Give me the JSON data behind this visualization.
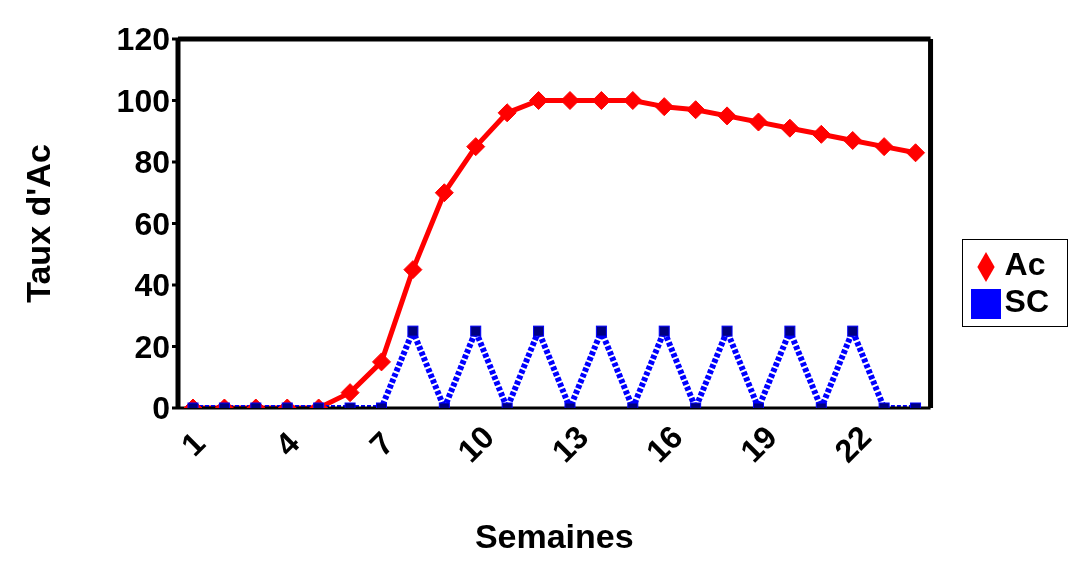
{
  "chart_data": {
    "type": "line",
    "xlabel": "Semaines",
    "ylabel": "Taux d'Ac",
    "categories": [
      "1",
      null,
      null,
      "4",
      null,
      null,
      "7",
      null,
      null,
      "10",
      null,
      null,
      "13",
      null,
      null,
      "16",
      null,
      null,
      "19",
      null,
      null,
      "22",
      null,
      null
    ],
    "series": [
      {
        "name": "Ac",
        "color": "#ff0000",
        "marker": "diamond",
        "line_style": "solid",
        "values": [
          0,
          0,
          0,
          0,
          0,
          5,
          15,
          45,
          70,
          85,
          96,
          100,
          100,
          100,
          100,
          98,
          97,
          95,
          93,
          91,
          89,
          87,
          85,
          83
        ]
      },
      {
        "name": "SC",
        "color": "#0000ff",
        "marker": "square",
        "line_style": "dotted",
        "values": [
          0,
          0,
          0,
          0,
          0,
          0,
          0,
          25,
          0,
          25,
          0,
          25,
          0,
          25,
          0,
          25,
          0,
          25,
          0,
          25,
          0,
          25,
          0,
          0
        ]
      }
    ],
    "ylim": [
      0,
      120
    ],
    "yticks": [
      0,
      20,
      40,
      60,
      80,
      100,
      120
    ],
    "grid": false,
    "legend": "right"
  }
}
